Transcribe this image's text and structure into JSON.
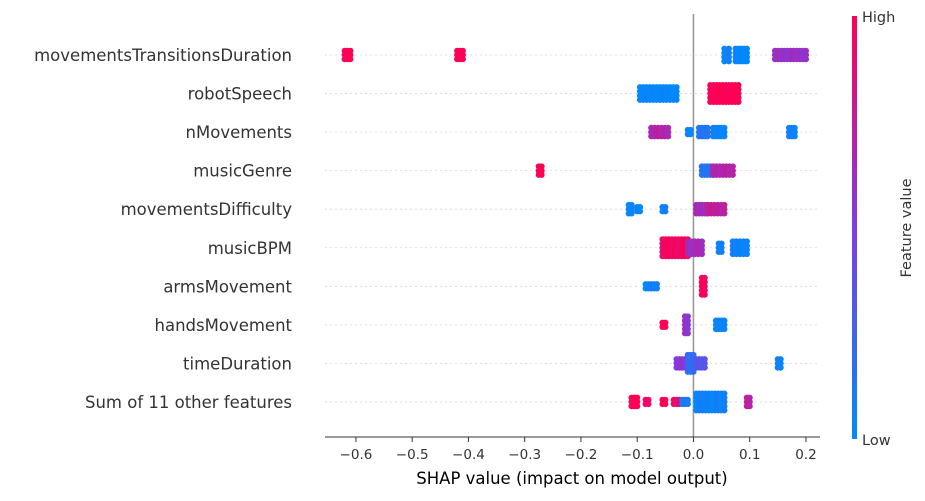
{
  "chart_data": {
    "type": "scatter",
    "subtype": "shap-beeswarm",
    "xlabel": "SHAP value (impact on model output)",
    "xlim": [
      -0.655,
      0.225
    ],
    "x_ticks": [
      -0.6,
      -0.5,
      -0.4,
      -0.3,
      -0.2,
      -0.1,
      0.0,
      0.1,
      0.2
    ],
    "x_tick_labels": [
      "−0.6",
      "−0.5",
      "−0.4",
      "−0.3",
      "−0.2",
      "−0.1",
      "0.0",
      "0.1",
      "0.2"
    ],
    "zero_line": 0.0,
    "features": [
      "movementsTransitionsDuration",
      "robotSpeech",
      "nMovements",
      "musicGenre",
      "movementsDifficulty",
      "musicBPM",
      "armsMovement",
      "handsMovement",
      "timeDuration",
      "Sum of 11 other features"
    ],
    "colorbar": {
      "label": "Feature value",
      "high_label": "High",
      "low_label": "Low",
      "low_color": "#008afb",
      "high_color": "#ff0052"
    },
    "points": [
      {
        "feature": "movementsTransitionsDuration",
        "groups": [
          {
            "x": [
              -0.62,
              -0.61
            ],
            "n": 3,
            "v": 1.0
          },
          {
            "x": [
              -0.42,
              -0.41
            ],
            "n": 3,
            "v": 1.0
          },
          {
            "x": [
              0.055,
              0.063
            ],
            "n": 4,
            "v": 0.05
          },
          {
            "x": [
              0.075,
              0.095
            ],
            "n": 4,
            "v": 0.02
          },
          {
            "x": [
              0.145,
              0.2
            ],
            "n": 3,
            "v": 0.6
          }
        ]
      },
      {
        "feature": "robotSpeech",
        "groups": [
          {
            "x": [
              -0.095,
              -0.03
            ],
            "n": 4,
            "v": 0.02
          },
          {
            "x": [
              0.03,
              0.08
            ],
            "n": 5,
            "v": 1.0
          }
        ]
      },
      {
        "feature": "nMovements",
        "groups": [
          {
            "x": [
              -0.075,
              -0.045
            ],
            "n": 3,
            "v": 0.7
          },
          {
            "x": [
              -0.01,
              -0.005
            ],
            "n": 2,
            "v": 0.05
          },
          {
            "x": [
              0.01,
              0.025
            ],
            "n": 3,
            "v": 0.15
          },
          {
            "x": [
              0.035,
              0.055
            ],
            "n": 3,
            "v": 0.05
          },
          {
            "x": [
              0.17,
              0.18
            ],
            "n": 3,
            "v": 0.05
          }
        ]
      },
      {
        "feature": "musicGenre",
        "groups": [
          {
            "x": [
              -0.275,
              -0.27
            ],
            "n": 3,
            "v": 1.0
          },
          {
            "x": [
              0.015,
              0.035
            ],
            "n": 3,
            "v": 0.15
          },
          {
            "x": [
              0.035,
              0.07
            ],
            "n": 3,
            "v": 0.7
          }
        ]
      },
      {
        "feature": "movementsDifficulty",
        "groups": [
          {
            "x": [
              -0.115,
              -0.11
            ],
            "n": 3,
            "v": 0.05
          },
          {
            "x": [
              -0.1,
              -0.095
            ],
            "n": 2,
            "v": 0.05
          },
          {
            "x": [
              -0.055,
              -0.05
            ],
            "n": 2,
            "v": 0.05
          },
          {
            "x": [
              0.005,
              0.025
            ],
            "n": 3,
            "v": 0.65
          },
          {
            "x": [
              0.025,
              0.055
            ],
            "n": 3,
            "v": 0.75
          }
        ]
      },
      {
        "feature": "musicBPM",
        "groups": [
          {
            "x": [
              -0.055,
              -0.01
            ],
            "n": 5,
            "v": 0.95
          },
          {
            "x": [
              -0.01,
              0.015
            ],
            "n": 4,
            "v": 0.65
          },
          {
            "x": [
              0.045,
              0.05
            ],
            "n": 3,
            "v": 0.05
          },
          {
            "x": [
              0.07,
              0.095
            ],
            "n": 4,
            "v": 0.05
          }
        ]
      },
      {
        "feature": "armsMovement",
        "groups": [
          {
            "x": [
              -0.085,
              -0.065
            ],
            "n": 2,
            "v": 0.05
          },
          {
            "x": [
              0.015,
              0.02
            ],
            "n": 5,
            "v": 1.0
          }
        ]
      },
      {
        "feature": "handsMovement",
        "groups": [
          {
            "x": [
              -0.055,
              -0.05
            ],
            "n": 2,
            "v": 1.0
          },
          {
            "x": [
              -0.015,
              -0.01
            ],
            "n": 5,
            "v": 0.6
          },
          {
            "x": [
              0.04,
              0.055
            ],
            "n": 3,
            "v": 0.05
          }
        ]
      },
      {
        "feature": "timeDuration",
        "groups": [
          {
            "x": [
              -0.03,
              -0.015
            ],
            "n": 3,
            "v": 0.55
          },
          {
            "x": [
              -0.01,
              0.0
            ],
            "n": 5,
            "v": 0.2
          },
          {
            "x": [
              0.005,
              0.02
            ],
            "n": 3,
            "v": 0.35
          },
          {
            "x": [
              0.15,
              0.155
            ],
            "n": 3,
            "v": 0.05
          }
        ]
      },
      {
        "feature": "Sum of 11 other features",
        "groups": [
          {
            "x": [
              -0.11,
              -0.1
            ],
            "n": 3,
            "v": 1.0
          },
          {
            "x": [
              -0.085,
              -0.08
            ],
            "n": 2,
            "v": 0.95
          },
          {
            "x": [
              -0.055,
              -0.05
            ],
            "n": 2,
            "v": 1.0
          },
          {
            "x": [
              -0.035,
              -0.025
            ],
            "n": 2,
            "v": 0.9
          },
          {
            "x": [
              -0.02,
              -0.01
            ],
            "n": 2,
            "v": 0.1
          },
          {
            "x": [
              0.005,
              0.055
            ],
            "n": 5,
            "v": 0.05
          },
          {
            "x": [
              0.095,
              0.1
            ],
            "n": 3,
            "v": 0.75
          }
        ]
      }
    ]
  }
}
